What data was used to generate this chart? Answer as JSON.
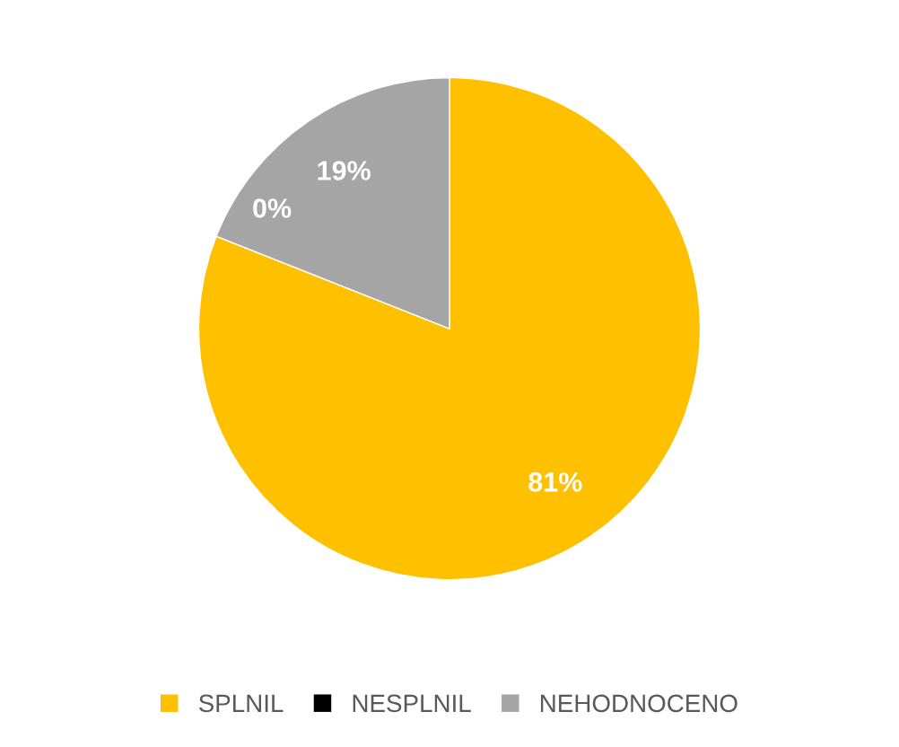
{
  "chart_data": {
    "type": "pie",
    "categories": [
      "SPLNIL",
      "NESPLNIL",
      "NEHODNOCENO"
    ],
    "values": [
      81,
      0,
      19
    ],
    "colors": [
      "#ffc000",
      "#000000",
      "#a5a5a5"
    ],
    "value_labels": [
      "81%",
      "0%",
      "19%"
    ],
    "legend": "bottom"
  }
}
